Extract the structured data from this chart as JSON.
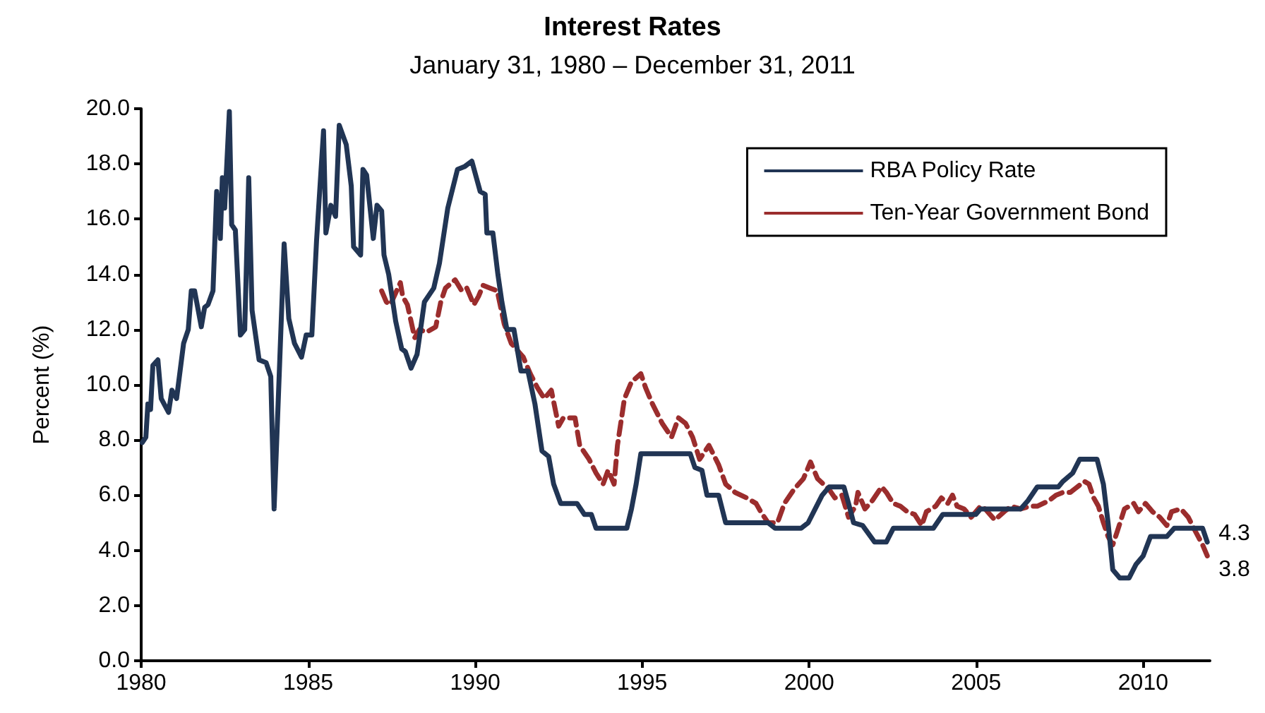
{
  "chart_data": {
    "type": "line",
    "title": "Interest Rates",
    "subtitle": "January 31, 1980 – December 31, 2011",
    "ylabel": "Percent (%)",
    "xlim": [
      1980,
      2012
    ],
    "xticks": [
      1980,
      1985,
      1990,
      1995,
      2000,
      2005,
      2010
    ],
    "ylim": [
      0,
      20
    ],
    "yticks": [
      {
        "value": 0,
        "label": "0.0"
      },
      {
        "value": 2,
        "label": "2.0"
      },
      {
        "value": 4,
        "label": "4.0"
      },
      {
        "value": 6,
        "label": "6.0"
      },
      {
        "value": 8,
        "label": "8.0"
      },
      {
        "value": 10,
        "label": "10.0"
      },
      {
        "value": 12,
        "label": "12.0"
      },
      {
        "value": 14,
        "label": "14.0"
      },
      {
        "value": 16,
        "label": "16.0"
      },
      {
        "value": 18,
        "label": "18.0"
      },
      {
        "value": 20,
        "label": "20.0"
      }
    ],
    "grid": false,
    "legend": "top right",
    "marker": "none",
    "series": [
      {
        "name": "RBA Policy Rate",
        "color": "#213554",
        "line_style": "solid",
        "x": [
          1980.03,
          1980.14,
          1980.2,
          1980.28,
          1980.35,
          1980.5,
          1980.6,
          1980.82,
          1980.92,
          1981.06,
          1981.27,
          1981.41,
          1981.5,
          1981.6,
          1981.8,
          1981.9,
          1982.0,
          1982.15,
          1982.26,
          1982.37,
          1982.43,
          1982.5,
          1982.64,
          1982.71,
          1982.82,
          1982.97,
          1983.1,
          1983.22,
          1983.32,
          1983.53,
          1983.74,
          1983.88,
          1983.98,
          1984.1,
          1984.28,
          1984.42,
          1984.59,
          1984.8,
          1984.94,
          1985.11,
          1985.25,
          1985.46,
          1985.53,
          1985.68,
          1985.82,
          1985.93,
          1986.14,
          1986.29,
          1986.36,
          1986.57,
          1986.64,
          1986.75,
          1986.95,
          1987.06,
          1987.2,
          1987.27,
          1987.41,
          1987.62,
          1987.8,
          1987.91,
          1988.08,
          1988.26,
          1988.48,
          1988.76,
          1988.93,
          1989.18,
          1989.47,
          1989.68,
          1989.9,
          1990.15,
          1990.3,
          1990.35,
          1990.53,
          1990.68,
          1990.8,
          1990.95,
          1991.16,
          1991.37,
          1991.58,
          1991.79,
          1992.0,
          1992.2,
          1992.35,
          1992.56,
          1993.05,
          1993.27,
          1993.48,
          1993.62,
          1994.54,
          1994.68,
          1994.82,
          1994.96,
          1996.44,
          1996.58,
          1996.79,
          1996.94,
          1997.29,
          1997.5,
          1998.77,
          1998.98,
          1999.76,
          1999.97,
          2000.18,
          2000.39,
          2000.6,
          2001.04,
          2001.18,
          2001.33,
          2001.6,
          2001.96,
          2002.31,
          2002.52,
          2003.72,
          2004.0,
          2004.99,
          2005.13,
          2006.33,
          2006.55,
          2006.83,
          2007.46,
          2007.6,
          2007.89,
          2008.1,
          2008.62,
          2008.81,
          2008.95,
          2009.09,
          2009.3,
          2009.58,
          2009.79,
          2010.0,
          2010.22,
          2010.71,
          2010.93,
          2011.78,
          2011.92
        ],
        "values": [
          7.9,
          8.1,
          9.3,
          9.1,
          10.7,
          10.9,
          9.5,
          9.0,
          9.8,
          9.5,
          11.5,
          12.0,
          13.4,
          13.4,
          12.1,
          12.8,
          12.9,
          13.4,
          17.0,
          15.3,
          17.5,
          16.4,
          19.9,
          15.8,
          15.6,
          11.8,
          12.0,
          17.5,
          12.7,
          10.9,
          10.8,
          10.3,
          5.5,
          9.3,
          15.1,
          12.4,
          11.5,
          11.0,
          11.8,
          11.8,
          15.2,
          19.2,
          15.5,
          16.5,
          16.1,
          19.4,
          18.7,
          17.2,
          15.0,
          14.7,
          17.8,
          17.6,
          15.3,
          16.5,
          16.3,
          14.7,
          14.0,
          12.3,
          11.3,
          11.2,
          10.6,
          11.1,
          13.0,
          13.5,
          14.4,
          16.4,
          17.8,
          17.9,
          18.1,
          17.0,
          16.9,
          15.5,
          15.5,
          14.0,
          13.0,
          12.0,
          12.0,
          10.5,
          10.5,
          9.3,
          7.6,
          7.4,
          6.4,
          5.7,
          5.7,
          5.3,
          5.3,
          4.8,
          4.8,
          5.5,
          6.4,
          7.5,
          7.5,
          7.0,
          6.9,
          6.0,
          6.0,
          5.0,
          5.0,
          4.8,
          4.8,
          5.0,
          5.5,
          6.0,
          6.3,
          6.3,
          5.7,
          5.0,
          4.9,
          4.3,
          4.3,
          4.8,
          4.8,
          5.3,
          5.3,
          5.5,
          5.5,
          5.8,
          6.3,
          6.3,
          6.5,
          6.8,
          7.3,
          7.3,
          6.4,
          5.0,
          3.3,
          3.0,
          3.0,
          3.5,
          3.8,
          4.5,
          4.5,
          4.8,
          4.8,
          4.3
        ],
        "value_labels": [
          null,
          null,
          null,
          null,
          null,
          null,
          null,
          null,
          null,
          null,
          null,
          null,
          null,
          null,
          null,
          null,
          null,
          null,
          null,
          null,
          null,
          null,
          null,
          null,
          null,
          null,
          null,
          null,
          null,
          null,
          null,
          null,
          null,
          null,
          null,
          null,
          null,
          null,
          null,
          null,
          null,
          null,
          null,
          null,
          null,
          null,
          null,
          null,
          null,
          null,
          null,
          null,
          null,
          null,
          null,
          null,
          null,
          null,
          null,
          null,
          null,
          null,
          null,
          null,
          null,
          null,
          null,
          null,
          null,
          null,
          null,
          null,
          null,
          null,
          null,
          null,
          null,
          null,
          null,
          null,
          null,
          null,
          null,
          null,
          null,
          null,
          null,
          null,
          null,
          null,
          null,
          null,
          null,
          null,
          null,
          null,
          null,
          null,
          null,
          null,
          null,
          null,
          null,
          null,
          null,
          null,
          null,
          null,
          null,
          null,
          null,
          null,
          null,
          null,
          null,
          null,
          null,
          null,
          null,
          null,
          null,
          null,
          null,
          null,
          null,
          null,
          null,
          null,
          null,
          null,
          null,
          null,
          null,
          null,
          null,
          "4.3"
        ]
      },
      {
        "name": "Ten-Year Government Bond",
        "color": "#9b2d2d",
        "line_style": "dashed",
        "x": [
          1987.2,
          1987.34,
          1987.46,
          1987.76,
          1987.83,
          1987.97,
          1988.19,
          1988.33,
          1988.54,
          1988.82,
          1988.97,
          1989.11,
          1989.4,
          1989.6,
          1989.75,
          1989.96,
          1990.1,
          1990.24,
          1990.45,
          1990.66,
          1990.87,
          1991.08,
          1991.44,
          1991.65,
          1991.86,
          1992.07,
          1992.28,
          1992.5,
          1992.64,
          1992.99,
          1993.13,
          1993.41,
          1993.62,
          1993.83,
          1993.98,
          1994.16,
          1994.26,
          1994.47,
          1994.68,
          1994.96,
          1995.1,
          1995.31,
          1995.6,
          1995.88,
          1996.09,
          1996.3,
          1996.51,
          1996.72,
          1997.0,
          1997.29,
          1997.5,
          1997.78,
          1998.13,
          1998.41,
          1998.55,
          1998.77,
          1999.05,
          1999.26,
          1999.54,
          1999.83,
          2000.04,
          2000.25,
          2000.6,
          2000.77,
          2000.98,
          2001.18,
          2001.39,
          2001.46,
          2001.67,
          2001.89,
          2002.17,
          2002.31,
          2002.52,
          2002.73,
          2002.94,
          2003.16,
          2003.37,
          2003.51,
          2003.79,
          2003.96,
          2004.15,
          2004.29,
          2004.43,
          2004.64,
          2004.85,
          2005.13,
          2005.27,
          2005.56,
          2005.84,
          2006.05,
          2006.33,
          2006.61,
          2006.83,
          2007.18,
          2007.39,
          2007.6,
          2007.82,
          2008.03,
          2008.24,
          2008.38,
          2008.52,
          2008.66,
          2008.81,
          2008.95,
          2009.09,
          2009.23,
          2009.44,
          2009.72,
          2009.86,
          2010.07,
          2010.28,
          2010.5,
          2010.71,
          2010.85,
          2011.13,
          2011.35,
          2011.56,
          2011.78,
          2011.92
        ],
        "values": [
          13.4,
          13.0,
          12.9,
          13.7,
          13.2,
          12.9,
          11.7,
          12.0,
          11.9,
          12.1,
          13.0,
          13.5,
          13.8,
          13.4,
          13.5,
          12.9,
          13.2,
          13.6,
          13.5,
          13.4,
          12.2,
          11.5,
          11.0,
          10.4,
          9.9,
          9.5,
          9.8,
          8.5,
          8.8,
          8.8,
          7.8,
          7.3,
          6.8,
          6.4,
          6.9,
          6.4,
          7.8,
          9.5,
          10.1,
          10.4,
          9.9,
          9.3,
          8.6,
          8.1,
          8.8,
          8.6,
          8.1,
          7.3,
          7.8,
          7.1,
          6.4,
          6.1,
          5.9,
          5.7,
          5.4,
          5.0,
          5.0,
          5.7,
          6.2,
          6.6,
          7.2,
          6.6,
          6.2,
          5.9,
          6.0,
          5.2,
          5.6,
          6.1,
          5.5,
          5.8,
          6.3,
          6.1,
          5.7,
          5.6,
          5.4,
          5.3,
          4.9,
          5.4,
          5.6,
          5.9,
          5.7,
          6.0,
          5.6,
          5.5,
          5.2,
          5.6,
          5.5,
          5.1,
          5.4,
          5.6,
          5.5,
          5.6,
          5.6,
          5.8,
          6.0,
          6.1,
          6.1,
          6.3,
          6.5,
          6.4,
          5.9,
          5.6,
          5.0,
          4.5,
          4.2,
          4.7,
          5.5,
          5.7,
          5.4,
          5.7,
          5.4,
          5.2,
          4.9,
          5.4,
          5.5,
          5.2,
          4.7,
          4.2,
          3.8
        ],
        "value_labels": [
          null,
          null,
          null,
          null,
          null,
          null,
          null,
          null,
          null,
          null,
          null,
          null,
          null,
          null,
          null,
          null,
          null,
          null,
          null,
          null,
          null,
          null,
          null,
          null,
          null,
          null,
          null,
          null,
          null,
          null,
          null,
          null,
          null,
          null,
          null,
          null,
          null,
          null,
          null,
          null,
          null,
          null,
          null,
          null,
          null,
          null,
          null,
          null,
          null,
          null,
          null,
          null,
          null,
          null,
          null,
          null,
          null,
          null,
          null,
          null,
          null,
          null,
          null,
          null,
          null,
          null,
          null,
          null,
          null,
          null,
          null,
          null,
          null,
          null,
          null,
          null,
          null,
          null,
          null,
          null,
          null,
          null,
          null,
          null,
          null,
          null,
          null,
          null,
          null,
          null,
          null,
          null,
          null,
          null,
          null,
          null,
          null,
          null,
          null,
          null,
          null,
          null,
          null,
          null,
          null,
          null,
          null,
          null,
          null,
          null,
          null,
          null,
          null,
          null,
          null,
          null,
          null,
          null,
          "3.8"
        ]
      }
    ]
  }
}
